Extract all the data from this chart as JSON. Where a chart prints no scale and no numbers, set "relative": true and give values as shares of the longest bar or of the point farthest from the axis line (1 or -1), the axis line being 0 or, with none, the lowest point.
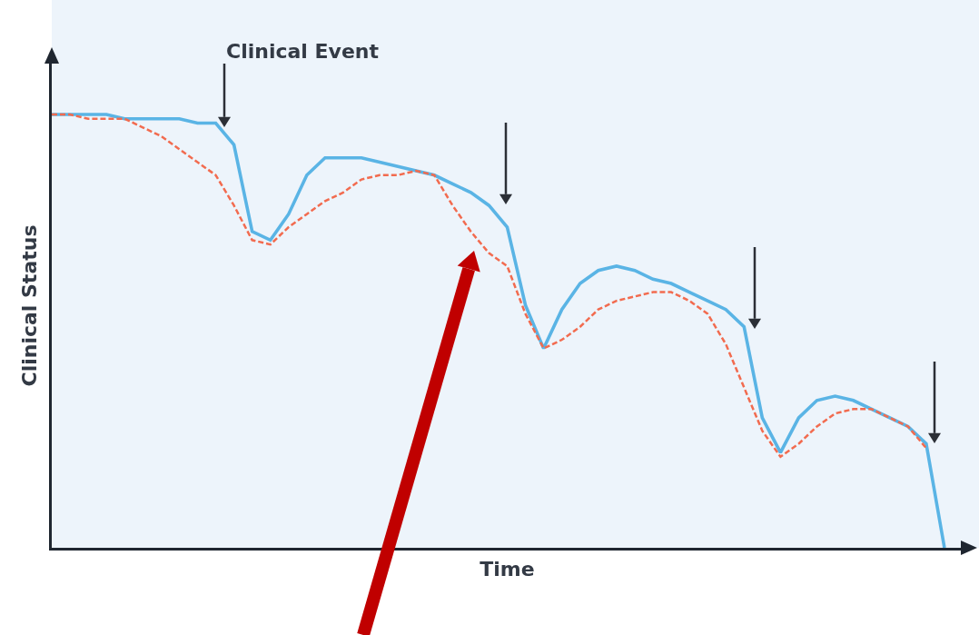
{
  "chart_data": {
    "type": "line",
    "relative": true,
    "xlabel": "Time",
    "ylabel": "Clinical Status",
    "annotations": [
      "Clinical Event"
    ],
    "legend": false,
    "marker": "none",
    "categories": [
      null,
      null,
      null,
      null,
      null,
      null,
      null,
      null,
      null,
      null,
      null,
      null,
      null,
      null,
      null,
      null,
      null,
      null,
      null,
      null,
      null,
      null,
      null,
      null,
      null,
      null,
      null,
      null,
      null,
      null,
      null,
      null,
      null,
      null,
      null,
      null,
      null,
      null,
      null,
      null,
      null,
      null,
      null,
      null,
      null,
      null,
      null,
      null,
      null,
      null
    ],
    "series": [
      {
        "color": "#5ab4e5",
        "line_style": "solid",
        "values": [
          1.0,
          1.0,
          1.0,
          1.0,
          0.99,
          0.99,
          0.99,
          0.99,
          0.98,
          0.98,
          0.93,
          0.73,
          0.71,
          0.77,
          0.86,
          0.9,
          0.9,
          0.9,
          0.89,
          0.88,
          0.87,
          0.86,
          0.84,
          0.82,
          0.79,
          0.74,
          0.56,
          0.46,
          0.55,
          0.61,
          0.64,
          0.65,
          0.64,
          0.62,
          0.61,
          0.59,
          0.57,
          0.55,
          0.51,
          0.3,
          0.22,
          0.3,
          0.34,
          0.35,
          0.34,
          0.32,
          0.3,
          0.28,
          0.24,
          0
        ]
      },
      {
        "color": "#f26b4f",
        "line_style": "dashed",
        "values": [
          1.0,
          1.0,
          0.99,
          0.99,
          0.99,
          0.97,
          0.95,
          0.92,
          0.89,
          0.86,
          0.79,
          0.71,
          0.7,
          0.74,
          0.77,
          0.8,
          0.82,
          0.85,
          0.86,
          0.86,
          0.87,
          0.86,
          0.79,
          0.73,
          0.68,
          0.65,
          0.54,
          0.46,
          0.48,
          0.51,
          0.55,
          0.57,
          0.58,
          0.59,
          0.59,
          0.57,
          0.54,
          0.47,
          0.37,
          0.27,
          0.21,
          0.24,
          0.28,
          0.31,
          0.32,
          0.32,
          0.3,
          0.28,
          0.23,
          null
        ]
      }
    ]
  }
}
